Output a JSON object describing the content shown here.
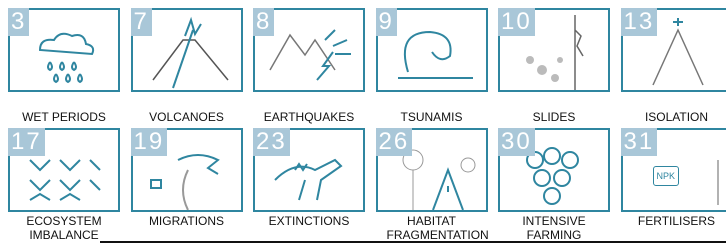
{
  "cards": [
    {
      "number": "3",
      "label": "WET PERIODS"
    },
    {
      "number": "7",
      "label": "VOLCANOES"
    },
    {
      "number": "8",
      "label": "EARTHQUAKES"
    },
    {
      "number": "9",
      "label": "TSUNAMIS"
    },
    {
      "number": "10",
      "label": "SLIDES"
    },
    {
      "number": "13",
      "label": "ISOLATION"
    },
    {
      "number": "17",
      "label": "ECOSYSTEM IMBALANCE"
    },
    {
      "number": "19",
      "label": "MIGRATIONS"
    },
    {
      "number": "23",
      "label": "EXTINCTIONS"
    },
    {
      "number": "26",
      "label": "HABITAT FRAGMENTATION"
    },
    {
      "number": "30",
      "label": "INTENSIVE FARMING"
    },
    {
      "number": "31",
      "label": "FERTILISERS",
      "icon_text": "NPK"
    }
  ]
}
